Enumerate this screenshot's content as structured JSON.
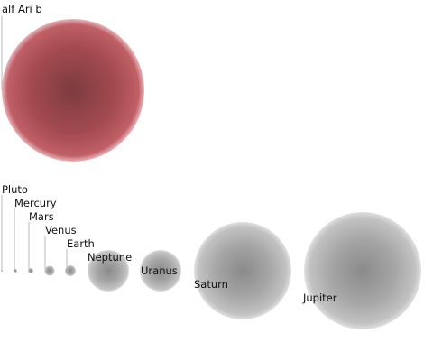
{
  "figure": {
    "title": "",
    "exoplanet": {
      "name": "alf Ari b",
      "color": "#b4525a"
    },
    "planet_color": "#8c8c8c",
    "planets": [
      {
        "name": "Pluto"
      },
      {
        "name": "Mercury"
      },
      {
        "name": "Mars"
      },
      {
        "name": "Venus"
      },
      {
        "name": "Earth"
      },
      {
        "name": "Neptune"
      },
      {
        "name": "Uranus"
      },
      {
        "name": "Saturn"
      },
      {
        "name": "Jupiter"
      }
    ]
  }
}
